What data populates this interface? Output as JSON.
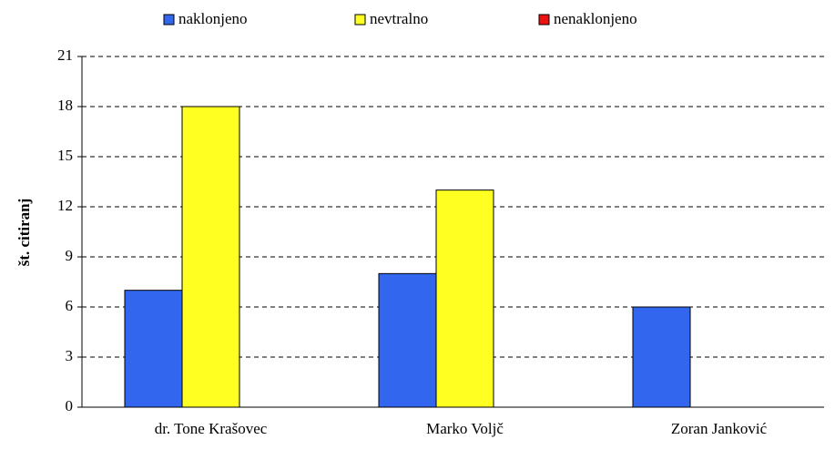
{
  "chart_data": {
    "type": "bar",
    "categories": [
      "dr. Tone Krašovec",
      "Marko Voljč",
      "Zoran Janković"
    ],
    "series": [
      {
        "name": "naklonjeno",
        "color": "#3366ee",
        "values": [
          7,
          8,
          6
        ]
      },
      {
        "name": "nevtralno",
        "color": "#ffff22",
        "values": [
          18,
          13,
          0
        ]
      },
      {
        "name": "nenaklonjeno",
        "color": "#ee1111",
        "values": [
          0,
          0,
          0
        ]
      }
    ],
    "ylabel": "št. citiranj",
    "ylim": [
      0,
      21
    ],
    "yticks": [
      0,
      3,
      6,
      9,
      12,
      15,
      18,
      21
    ],
    "grid": true,
    "legend": "top"
  }
}
